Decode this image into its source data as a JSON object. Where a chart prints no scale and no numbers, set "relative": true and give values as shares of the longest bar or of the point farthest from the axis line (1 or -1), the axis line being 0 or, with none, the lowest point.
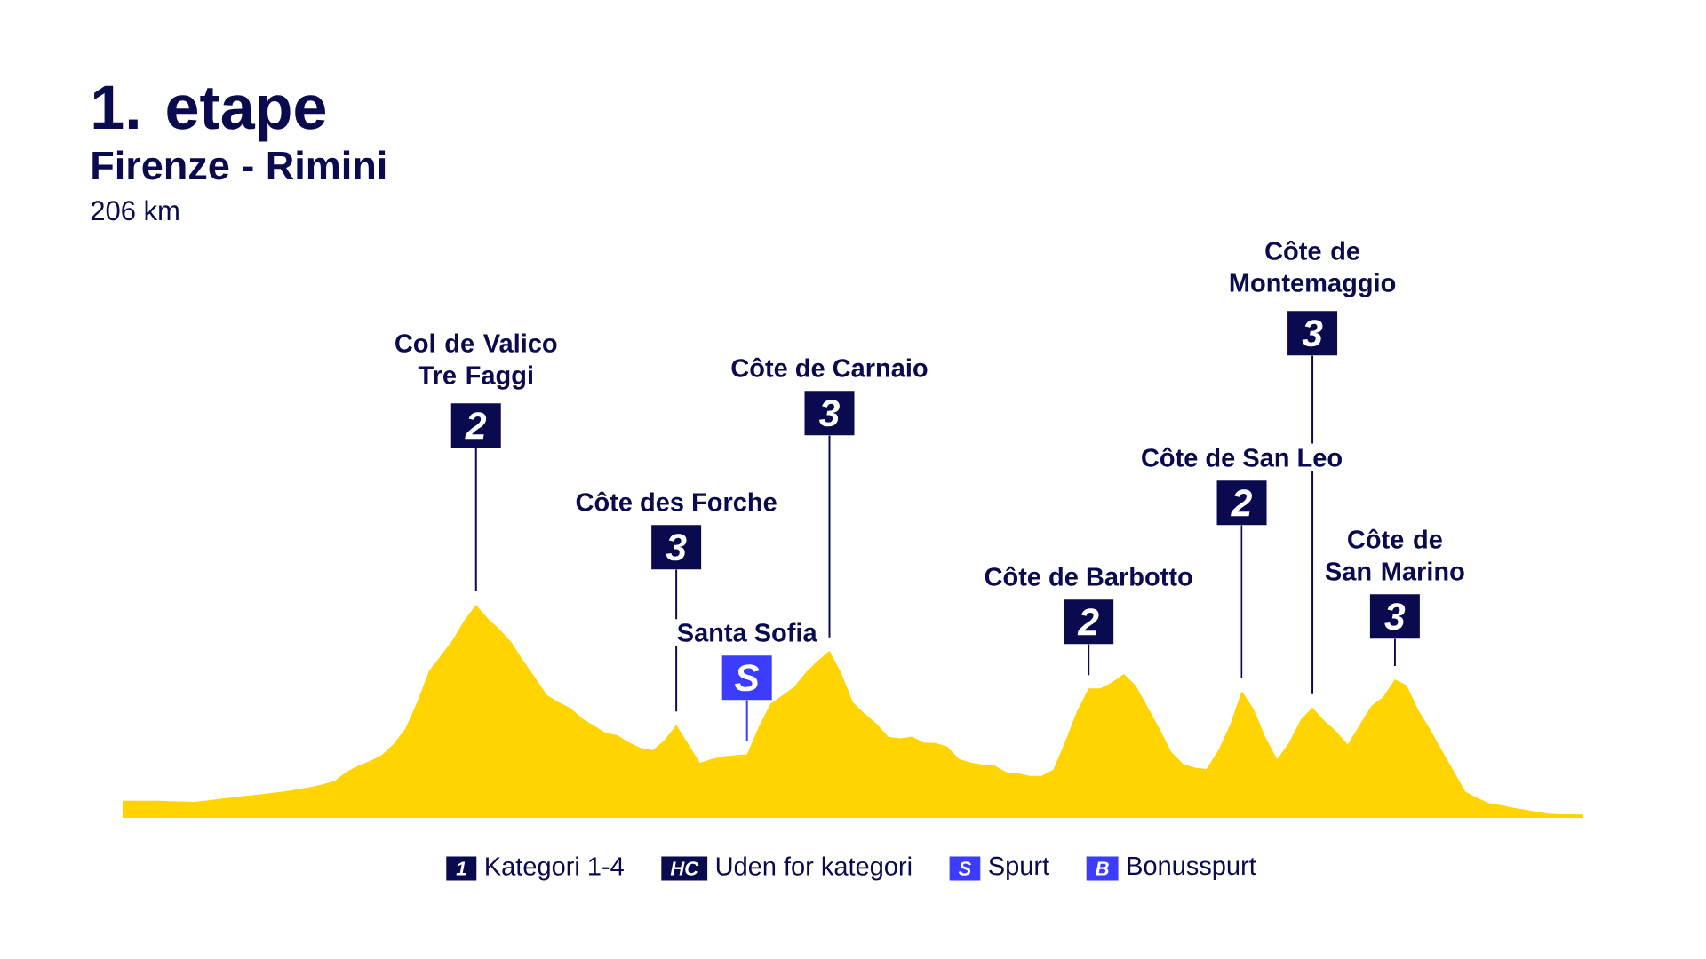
{
  "chart_data": {
    "type": "area",
    "title": "1. etape",
    "subtitle": "Firenze - Rimini",
    "relative": true,
    "color": "#ffd400",
    "categories": [
      null,
      null,
      null,
      null,
      null,
      null,
      null,
      null,
      null,
      null,
      null,
      null,
      null,
      null,
      null,
      null,
      null,
      null,
      null,
      null,
      null,
      null,
      null,
      null,
      null,
      null,
      null,
      null,
      null,
      null,
      null,
      null,
      null,
      null,
      null,
      null,
      null,
      null,
      null,
      null,
      null,
      null,
      null,
      null,
      null,
      null,
      null,
      null,
      null,
      null,
      null,
      null,
      null,
      null,
      null,
      null,
      null,
      null,
      null,
      null,
      null,
      null,
      null,
      null,
      null,
      null,
      null,
      null,
      null,
      null,
      null,
      null,
      null,
      null,
      null,
      null,
      null,
      null,
      null,
      null,
      null,
      null,
      null,
      null,
      null,
      null,
      null,
      null,
      null,
      null,
      null,
      null,
      null,
      null,
      null,
      null,
      null,
      null,
      null,
      null,
      null,
      null,
      null,
      null,
      null,
      null,
      null,
      null,
      null,
      null,
      null,
      null,
      null,
      null,
      null,
      null,
      null,
      null,
      null,
      null,
      null,
      null,
      null,
      null,
      null
    ],
    "values": [
      0.08,
      0.08,
      0.08,
      0.08,
      0.078,
      0.077,
      0.075,
      0.08,
      0.087,
      0.094,
      0.101,
      0.106,
      0.112,
      0.119,
      0.126,
      0.136,
      0.145,
      0.157,
      0.174,
      0.216,
      0.245,
      0.267,
      0.295,
      0.346,
      0.419,
      0.543,
      0.688,
      0.76,
      0.833,
      0.926,
      1,
      0.935,
      0.884,
      0.824,
      0.739,
      0.659,
      0.577,
      0.543,
      0.516,
      0.467,
      0.433,
      0.399,
      0.387,
      0.353,
      0.327,
      0.318,
      0.364,
      0.436,
      0.348,
      0.258,
      0.276,
      0.288,
      0.294,
      0.298,
      0.427,
      0.535,
      0.574,
      0.614,
      0.683,
      0.736,
      0.784,
      0.679,
      0.542,
      0.488,
      0.442,
      0.38,
      0.373,
      0.381,
      0.353,
      0.351,
      0.334,
      0.276,
      0.259,
      0.25,
      0.246,
      0.215,
      0.209,
      0.197,
      0.197,
      0.226,
      0.356,
      0.499,
      0.607,
      0.607,
      0.636,
      0.675,
      0.621,
      0.521,
      0.421,
      0.31,
      0.254,
      0.235,
      0.229,
      0.316,
      0.435,
      0.595,
      0.511,
      0.379,
      0.275,
      0.351,
      0.46,
      0.518,
      0.456,
      0.407,
      0.344,
      0.435,
      0.525,
      0.567,
      0.65,
      0.622,
      0.504,
      0.414,
      0.316,
      0.219,
      0.122,
      0.094,
      0.069,
      0.059,
      0.048,
      0.038,
      0.029,
      0.02,
      0.017,
      0.017,
      0.015
    ],
    "annotations": [
      "Col de Valico Tre Faggi",
      "2",
      "Côte des Forche",
      "3",
      "Santa Sofia",
      "S",
      "Côte de Carnaio",
      "3",
      "Côte de Barbotto",
      "2",
      "Côte de San Leo",
      "2",
      "Côte de Montemaggio",
      "3",
      "Côte de San Marino",
      "3",
      "206 km",
      "1",
      "Kategori 1-4",
      "HC",
      "Uden for kategori",
      "S",
      "Spurt",
      "B",
      "Bonusspurt"
    ]
  }
}
